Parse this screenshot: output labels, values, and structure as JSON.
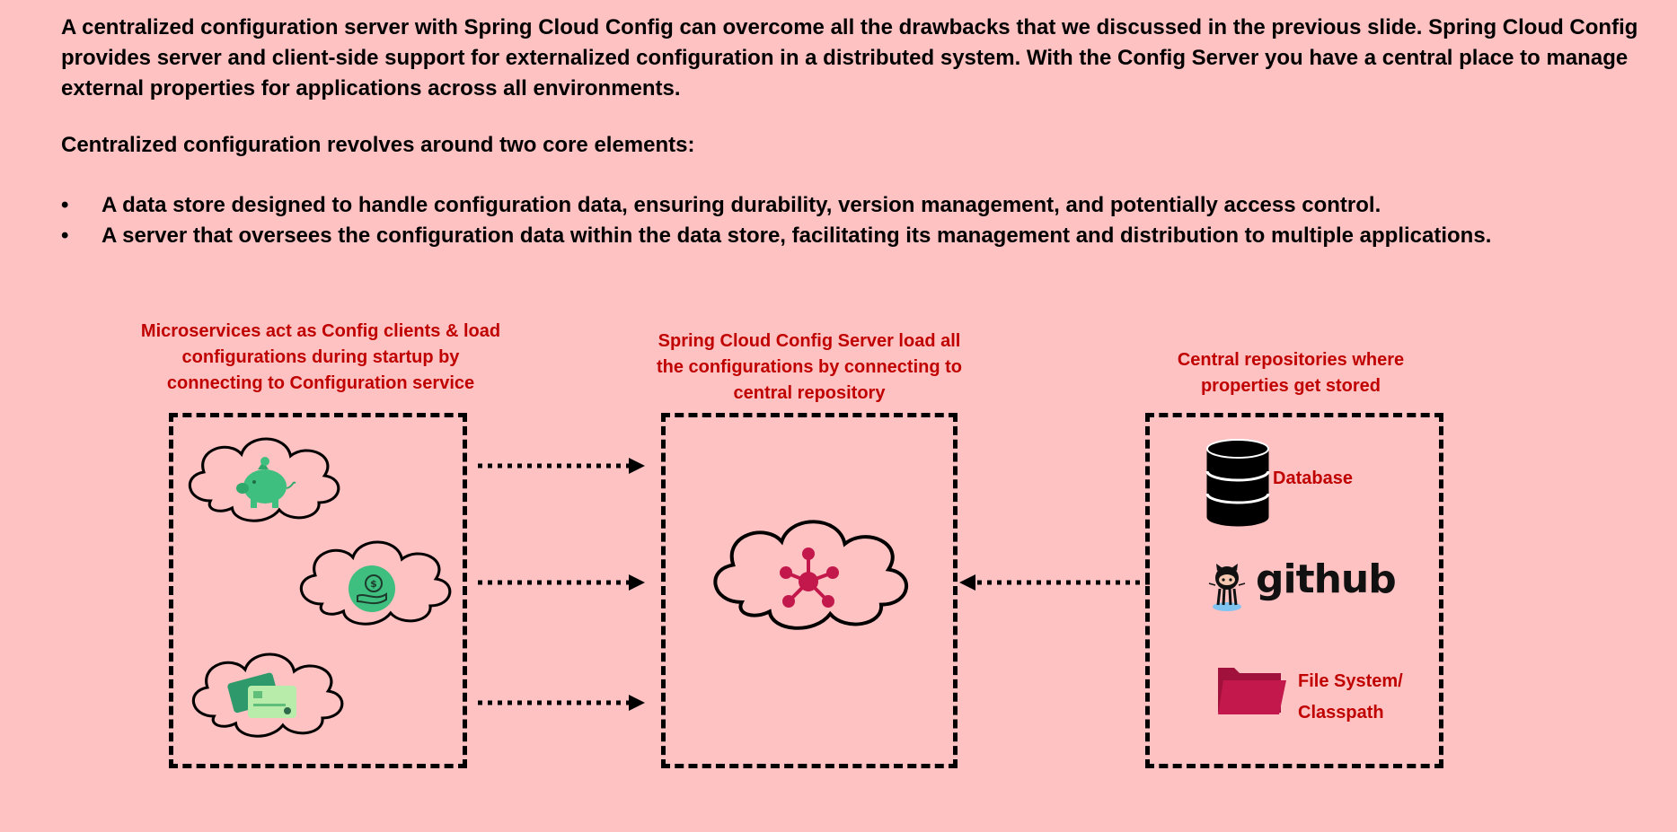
{
  "intro": {
    "paragraph": "A centralized configuration server with Spring Cloud Config can overcome all the drawbacks that we discussed in the previous slide. Spring Cloud Config provides server and client-side support for externalized configuration in a distributed system. With the Config Server you have a central place to manage external properties for applications across all environments.",
    "subheading": "Centralized configuration revolves around two core elements:",
    "bullets": [
      "A data store designed to handle configuration data, ensuring durability, version management, and potentially access control.",
      "A server that oversees the configuration data within the data store, facilitating its management and distribution to multiple applications."
    ],
    "bullet_symbol": "•"
  },
  "diagram": {
    "clients": {
      "caption": "Microservices act as Config clients & load configurations during startup by connecting to Configuration service",
      "items": [
        {
          "icon": "piggy-bank-icon"
        },
        {
          "icon": "money-hand-icon"
        },
        {
          "icon": "credit-cards-icon"
        }
      ]
    },
    "server": {
      "caption": "Spring Cloud Config Server load all the configurations by connecting to central repository",
      "icon": "hub-network-icon"
    },
    "repositories": {
      "caption": "Central repositories where properties get stored",
      "items": [
        {
          "icon": "database-icon",
          "label": "Database"
        },
        {
          "icon": "github-octocat-icon",
          "label": "github"
        },
        {
          "icon": "folder-icon",
          "label": "File System/ Classpath"
        }
      ]
    },
    "colors": {
      "background": "#ffc2c2",
      "caption": "#c00000",
      "accent": "#c2184b",
      "green": "#3fbf7f"
    }
  }
}
